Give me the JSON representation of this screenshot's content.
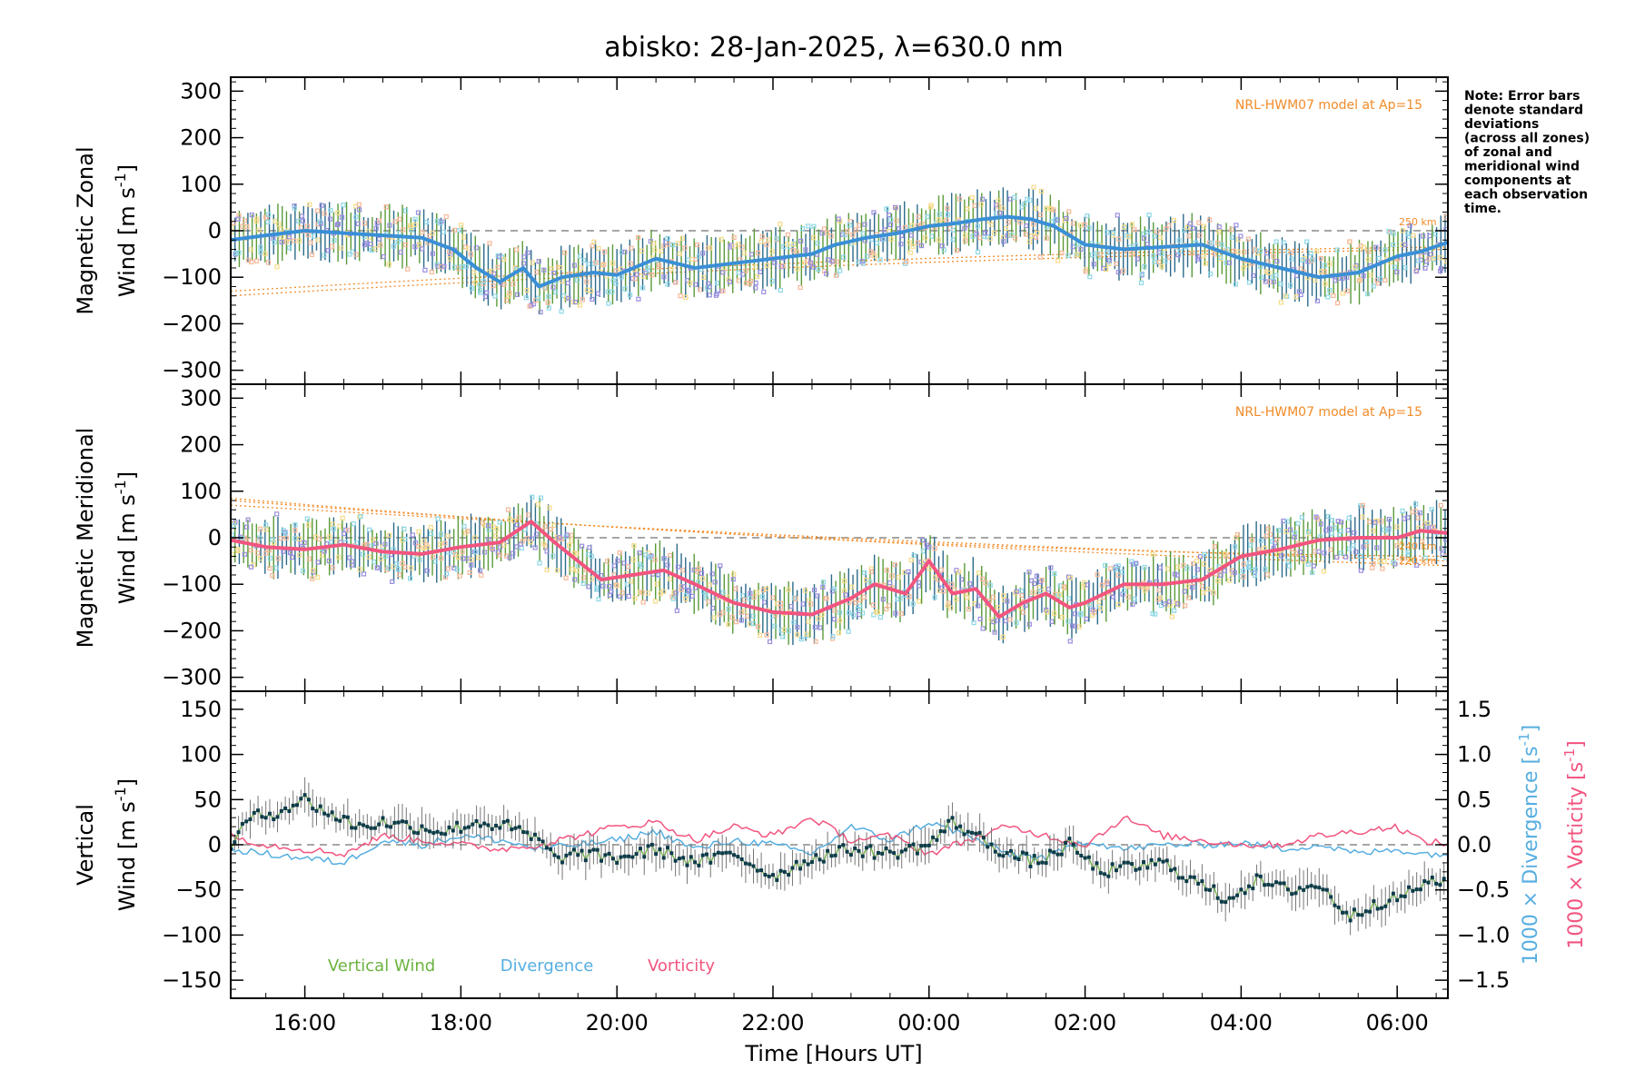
{
  "chart_data": {
    "type": "line",
    "title": "abisko: 28-Jan-2025, λ=630.0 nm",
    "xlabel": "Time [Hours UT]",
    "x_ticks": [
      "16:00",
      "18:00",
      "20:00",
      "22:00",
      "00:00",
      "02:00",
      "04:00",
      "06:00"
    ],
    "x_range_hours_ut": [
      15.05,
      30.65
    ],
    "note": [
      "Note: Error bars",
      "denote standard",
      "deviations",
      "(across all zones)",
      "of zonal and",
      "meridional wind",
      "components at",
      "each observation",
      "time."
    ],
    "panels": [
      {
        "name": "zonal",
        "ylabel_line1": "Magnetic Zonal",
        "ylabel_line2": "Wind [m s",
        "ylabel_sup": "-1",
        "ylabel_close": "]",
        "ylim": [
          -330,
          330
        ],
        "yticks": [
          "300",
          "200",
          "100",
          "0",
          "−100",
          "−200",
          "−300"
        ],
        "model_label": "NRL-HWM07 model at Ap=15",
        "altitude_labels": [
          "250 km"
        ],
        "series": [
          {
            "name": "Zonal wind",
            "color": "#3a8fd6",
            "x": [
              15.05,
              15.5,
              16.0,
              16.5,
              17.0,
              17.5,
              17.9,
              18.2,
              18.5,
              18.8,
              19.0,
              19.3,
              19.7,
              20.0,
              20.5,
              21.0,
              21.5,
              22.0,
              22.5,
              22.8,
              23.2,
              23.6,
              24.0,
              24.3,
              24.7,
              25.0,
              25.3,
              25.6,
              26.0,
              26.5,
              27.0,
              27.5,
              28.0,
              28.5,
              29.0,
              29.5,
              30.0,
              30.3,
              30.65
            ],
            "y": [
              -20,
              -10,
              0,
              -5,
              -10,
              -15,
              -40,
              -80,
              -110,
              -80,
              -120,
              -100,
              -90,
              -95,
              -60,
              -80,
              -70,
              -60,
              -50,
              -30,
              -15,
              -5,
              10,
              15,
              25,
              30,
              25,
              10,
              -30,
              -40,
              -35,
              -30,
              -60,
              -80,
              -100,
              -90,
              -55,
              -45,
              -25
            ]
          }
        ]
      },
      {
        "name": "meridional",
        "ylabel_line1": "Magnetic Meridional",
        "ylabel_line2": "Wind [m s",
        "ylabel_sup": "-1",
        "ylabel_close": "]",
        "ylim": [
          -330,
          330
        ],
        "yticks": [
          "300",
          "200",
          "100",
          "0",
          "−100",
          "−200",
          "−300"
        ],
        "model_label": "NRL-HWM07 model at Ap=15",
        "altitude_labels": [
          "240 km",
          "220 km"
        ],
        "series": [
          {
            "name": "Meridional wind",
            "color": "#f2557f",
            "x": [
              15.05,
              15.5,
              16.0,
              16.5,
              17.0,
              17.5,
              18.0,
              18.5,
              18.9,
              19.2,
              19.5,
              19.8,
              20.2,
              20.6,
              21.0,
              21.5,
              22.0,
              22.5,
              23.0,
              23.3,
              23.7,
              24.0,
              24.3,
              24.6,
              24.9,
              25.2,
              25.5,
              25.8,
              26.0,
              26.5,
              27.0,
              27.5,
              28.0,
              28.5,
              29.0,
              29.5,
              30.0,
              30.3,
              30.65
            ],
            "y": [
              -5,
              -20,
              -25,
              -15,
              -30,
              -35,
              -20,
              -10,
              35,
              -10,
              -50,
              -90,
              -80,
              -70,
              -100,
              -140,
              -160,
              -165,
              -130,
              -100,
              -120,
              -50,
              -120,
              -110,
              -170,
              -140,
              -120,
              -150,
              -140,
              -100,
              -100,
              -90,
              -40,
              -25,
              -5,
              0,
              0,
              15,
              10
            ]
          }
        ]
      },
      {
        "name": "vertical",
        "ylabel_line1": "Vertical",
        "ylabel_line2": "Wind [m s",
        "ylabel_sup": "-1",
        "ylabel_close": "]",
        "ylim": [
          -170,
          170
        ],
        "yticks": [
          "150",
          "100",
          "50",
          "0",
          "−50",
          "−100",
          "−150"
        ],
        "right_axis": {
          "ylim": [
            -1.7,
            1.7
          ],
          "yticks": [
            "1.5",
            "1.0",
            "0.5",
            "0.0",
            "−0.5",
            "−1.0",
            "−1.5"
          ],
          "label_divergence": "1000 × Divergence [s",
          "label_vorticity": "1000 × Vorticity [s",
          "label_sup": "-1",
          "label_close": "]"
        },
        "legend": [
          "Vertical Wind",
          "Divergence",
          "Vorticity"
        ],
        "series": [
          {
            "name": "Vertical Wind",
            "color": "#6cb33f",
            "x": [
              15.05,
              15.3,
              15.6,
              16.0,
              16.3,
              16.7,
              17.0,
              17.4,
              17.8,
              18.2,
              18.6,
              19.0,
              19.2,
              19.5,
              20.0,
              20.5,
              21.0,
              21.5,
              22.0,
              22.5,
              23.0,
              23.5,
              24.0,
              24.3,
              24.6,
              25.0,
              25.4,
              25.8,
              26.2,
              26.6,
              27.0,
              27.4,
              27.8,
              28.2,
              28.6,
              29.0,
              29.4,
              29.7,
              30.0,
              30.3,
              30.65
            ],
            "y": [
              0,
              30,
              35,
              50,
              35,
              20,
              25,
              20,
              15,
              25,
              20,
              5,
              -15,
              -10,
              -15,
              -5,
              -20,
              -10,
              -35,
              -15,
              -5,
              -10,
              0,
              25,
              10,
              -10,
              -20,
              0,
              -30,
              -25,
              -20,
              -40,
              -60,
              -40,
              -50,
              -45,
              -80,
              -65,
              -60,
              -45,
              -40
            ]
          },
          {
            "name": "Divergence",
            "color": "#56aee0",
            "axis": "right",
            "x": [
              15.05,
              15.5,
              16.0,
              16.5,
              17.0,
              17.5,
              18.0,
              18.5,
              19.0,
              19.5,
              20.0,
              20.5,
              21.0,
              21.5,
              22.0,
              22.5,
              23.0,
              23.5,
              24.0,
              24.5,
              25.0,
              25.5,
              26.0,
              26.5,
              27.0,
              27.5,
              28.0,
              28.5,
              29.0,
              29.5,
              30.0,
              30.3,
              30.65
            ],
            "y": [
              -0.05,
              -0.1,
              -0.15,
              -0.2,
              0.05,
              0.0,
              0.1,
              0.05,
              -0.05,
              0.0,
              0.05,
              0.15,
              -0.05,
              0.05,
              0.0,
              -0.1,
              0.2,
              0.05,
              0.25,
              0.1,
              -0.1,
              -0.15,
              0.05,
              -0.05,
              0.0,
              0.0,
              0.02,
              -0.05,
              0.0,
              -0.1,
              -0.05,
              -0.1,
              -0.1
            ]
          },
          {
            "name": "Vorticity",
            "color": "#f2557f",
            "axis": "right",
            "x": [
              15.05,
              15.5,
              16.0,
              16.5,
              17.0,
              17.5,
              18.0,
              18.5,
              19.0,
              19.5,
              20.0,
              20.5,
              21.0,
              21.5,
              22.0,
              22.5,
              23.0,
              23.5,
              24.0,
              24.5,
              25.0,
              25.5,
              26.0,
              26.5,
              27.0,
              27.5,
              28.0,
              28.5,
              29.0,
              29.5,
              30.0,
              30.3,
              30.65
            ],
            "y": [
              0.1,
              0.0,
              -0.05,
              -0.1,
              0.1,
              0.05,
              0.0,
              -0.05,
              0.0,
              0.1,
              0.2,
              0.25,
              0.05,
              0.2,
              0.1,
              0.3,
              0.05,
              0.1,
              -0.1,
              0.05,
              0.2,
              0.1,
              0.0,
              0.3,
              0.1,
              0.05,
              0.0,
              0.0,
              0.1,
              0.15,
              0.2,
              0.05,
              0.0
            ]
          }
        ]
      }
    ]
  }
}
